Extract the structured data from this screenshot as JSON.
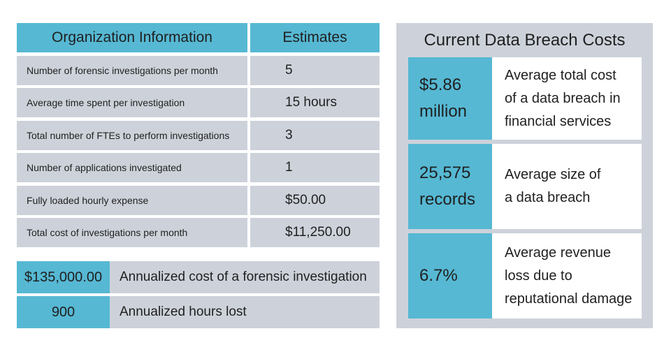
{
  "left_table": {
    "header_left": "Organization Information",
    "header_right": "Estimates",
    "rows": [
      {
        "label": "Number of forensic investigations per month",
        "value": "5"
      },
      {
        "label": "Average time spent per investigation",
        "value": "15 hours"
      },
      {
        "label": "Total number of FTEs to perform investigations",
        "value": "3"
      },
      {
        "label": "Number of applications investigated",
        "value": "1"
      },
      {
        "label": "Fully loaded hourly expense",
        "value": "$50.00"
      },
      {
        "label": "Total cost of investigations per month",
        "value": "$11,250.00"
      }
    ]
  },
  "summary": [
    {
      "value": "$135,000.00",
      "label": "Annualized cost of a forensic investigation"
    },
    {
      "value": "900",
      "label": "Annualized hours lost"
    }
  ],
  "breach_panel": {
    "title": "Current Data Breach Costs",
    "items": [
      {
        "stat_line1": "$5.86",
        "stat_line2": "million",
        "desc_line1": "Average total cost",
        "desc_line2": "of a data breach in",
        "desc_line3": "financial services"
      },
      {
        "stat_line1": "25,575",
        "stat_line2": "records",
        "desc_line1": "Average size of",
        "desc_line2": "a data breach",
        "desc_line3": ""
      },
      {
        "stat_line1": "6.7%",
        "stat_line2": "",
        "desc_line1": "Average revenue",
        "desc_line2": "loss due to",
        "desc_line3": "reputational damage"
      }
    ]
  },
  "colors": {
    "accent": "#56b8d3",
    "grey": "#cdd2da",
    "background": "#ffffff"
  }
}
